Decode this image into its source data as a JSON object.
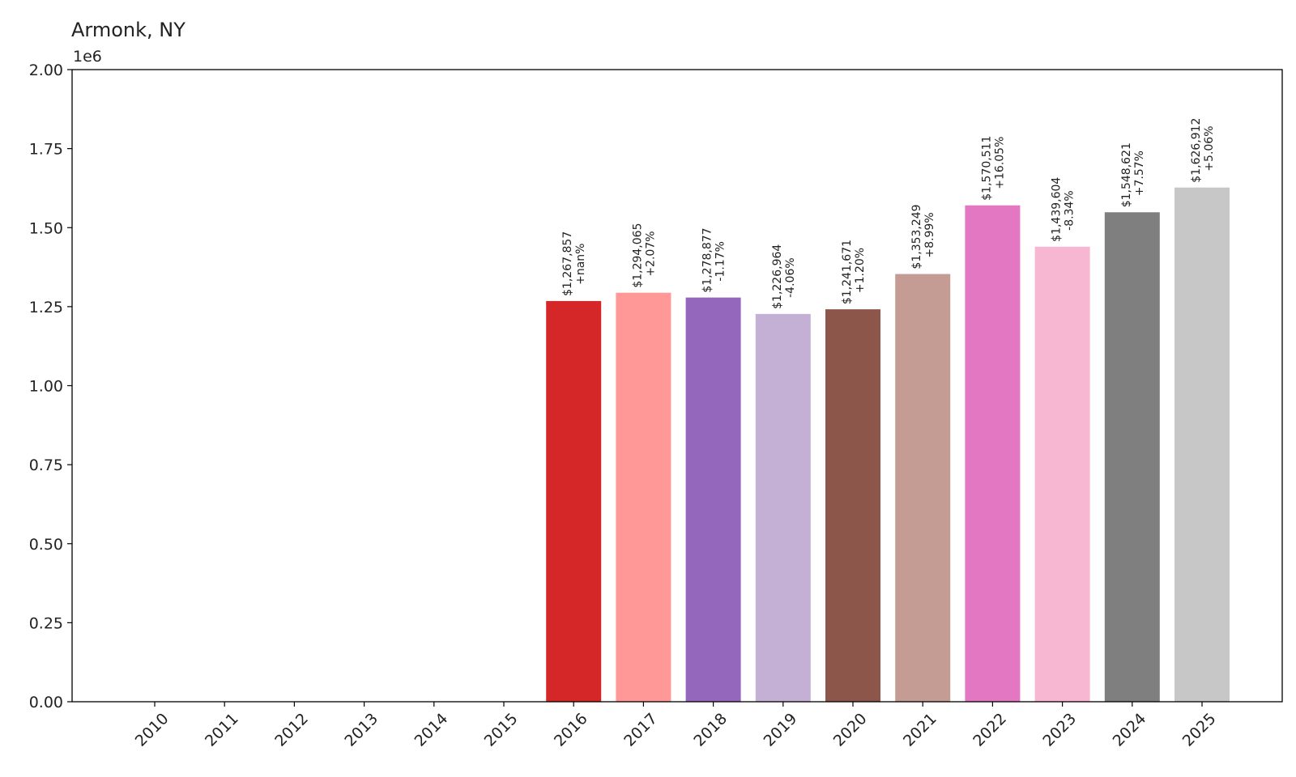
{
  "chart_data": {
    "type": "bar",
    "title": "Armonk, NY",
    "offset_label": "1e6",
    "xlabel": "",
    "ylabel": "",
    "ylim": [
      0,
      2000000
    ],
    "grid": false,
    "categories": [
      "2010",
      "2011",
      "2012",
      "2013",
      "2014",
      "2015",
      "2016",
      "2017",
      "2018",
      "2019",
      "2020",
      "2021",
      "2022",
      "2023",
      "2024",
      "2025"
    ],
    "values": [
      0,
      0,
      0,
      0,
      0,
      0,
      1267857,
      1294065,
      1278877,
      1226964,
      1241671,
      1353249,
      1570511,
      1439604,
      1548621,
      1626912
    ],
    "value_labels": [
      "",
      "",
      "",
      "",
      "",
      "",
      "$1,267,857",
      "$1,294,065",
      "$1,278,877",
      "$1,226,964",
      "$1,241,671",
      "$1,353,249",
      "$1,570,511",
      "$1,439,604",
      "$1,548,621",
      "$1,626,912"
    ],
    "change_labels": [
      "",
      "",
      "",
      "",
      "",
      "",
      "+nan%",
      "+2.07%",
      "-1.17%",
      "-4.06%",
      "+1.20%",
      "+8.99%",
      "+16.05%",
      "-8.34%",
      "+7.57%",
      "+5.06%"
    ],
    "colors": [
      "#1f77b4",
      "#aec7e8",
      "#ff7f0e",
      "#ffbb78",
      "#2ca02c",
      "#98df8a",
      "#d62728",
      "#ff9896",
      "#9467bd",
      "#c5b0d5",
      "#8c564b",
      "#c49c94",
      "#e377c2",
      "#f7b6d2",
      "#7f7f7f",
      "#c7c7c7"
    ],
    "y_ticks": [
      0,
      250000,
      500000,
      750000,
      1000000,
      1250000,
      1500000,
      1750000,
      2000000
    ],
    "y_tick_labels": [
      "0.00",
      "0.25",
      "0.50",
      "0.75",
      "1.00",
      "1.25",
      "1.50",
      "1.75",
      "2.00"
    ]
  }
}
